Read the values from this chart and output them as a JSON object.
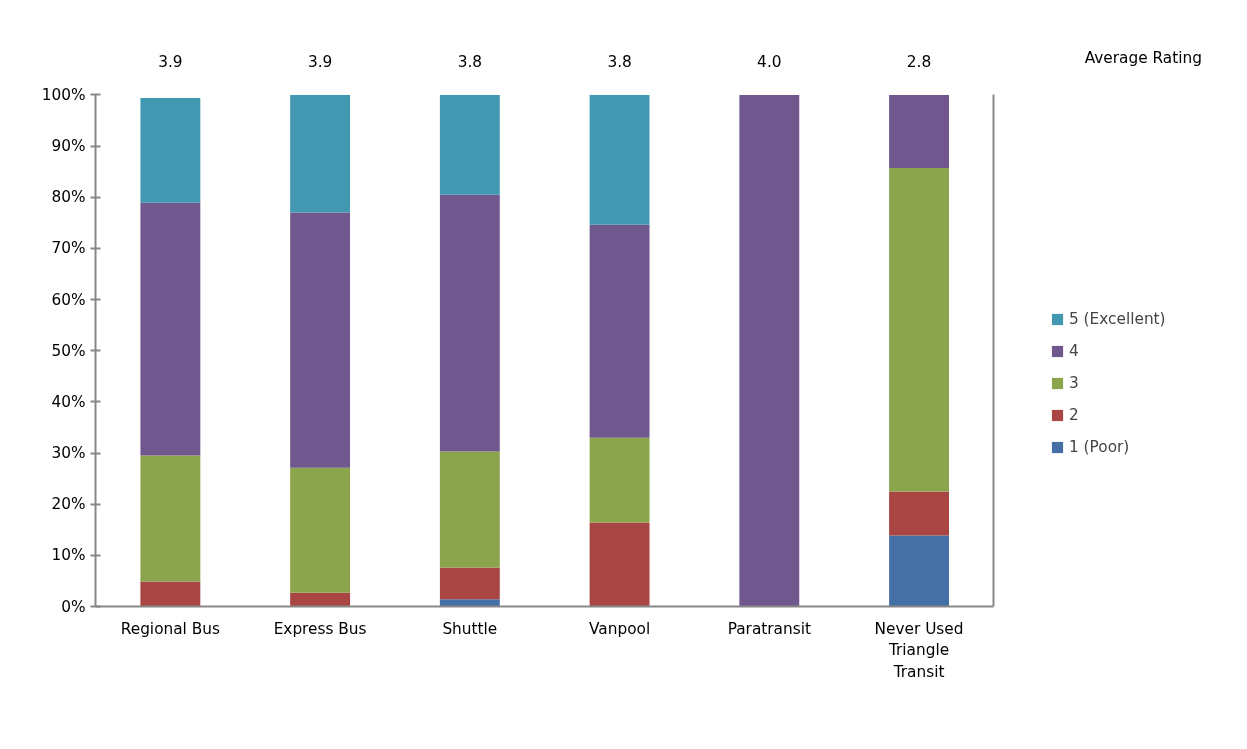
{
  "chart_data": {
    "type": "bar",
    "stacked": true,
    "categories": [
      "Regional Bus",
      "Express Bus",
      "Shuttle",
      "Vanpool",
      "Paratransit",
      "Never Used Triangle Transit"
    ],
    "series": [
      {
        "name": "1 (Poor)",
        "color": "#4470a5",
        "values": [
          0,
          0,
          1.4,
          0,
          0,
          13.9
        ]
      },
      {
        "name": "2",
        "color": "#a94644",
        "values": [
          4.9,
          2.7,
          6.2,
          16.4,
          0,
          8.6
        ]
      },
      {
        "name": "3",
        "color": "#8aa54c",
        "values": [
          24.6,
          24.4,
          22.7,
          16.6,
          0,
          63.2
        ]
      },
      {
        "name": "4",
        "color": "#70588f",
        "values": [
          49.4,
          49.9,
          50.2,
          41.6,
          100,
          14.3
        ]
      },
      {
        "name": "5 (Excellent)",
        "color": "#4298b0",
        "values": [
          20.5,
          23.0,
          19.5,
          25.4,
          0,
          0
        ]
      }
    ],
    "ylim": [
      0,
      100
    ],
    "yticks": [
      {
        "value": 0,
        "label": "0%"
      },
      {
        "value": 10,
        "label": "10%"
      },
      {
        "value": 20,
        "label": "20%"
      },
      {
        "value": 30,
        "label": "30%"
      },
      {
        "value": 40,
        "label": "40%"
      },
      {
        "value": 50,
        "label": "50%"
      },
      {
        "value": 60,
        "label": "60%"
      },
      {
        "value": 70,
        "label": "70%"
      },
      {
        "value": 80,
        "label": "80%"
      },
      {
        "value": 90,
        "label": "90%"
      },
      {
        "value": 100,
        "label": "100%"
      }
    ],
    "annotations": [
      "3.9",
      "3.9",
      "3.8",
      "3.8",
      "4.0",
      "2.8",
      "Average Rating"
    ],
    "grid": false,
    "legend": "right"
  }
}
